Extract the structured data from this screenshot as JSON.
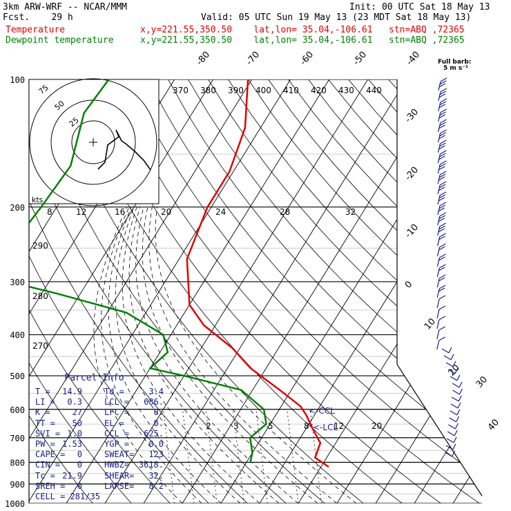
{
  "header": {
    "model": "3km ARW-WRF -- NCAR/MMM",
    "fcst": "Fcst.    29 h",
    "init": "Init: 00 UTC Sat 18 May 13",
    "valid": "Valid: 05 UTC Sun 19 May 13 (23 MDT Sat 18 May 13)",
    "temp_label": "Temperature",
    "temp_info": "x,y=221.55,350.50    lat,lon= 35.04,-106.61   stn=ABQ ,72365",
    "dew_label": "Dewpoint temperature",
    "dew_info": "x,y=221.55,350.50    lat,lon= 35.04,-106.61   stn=ABQ ,72365"
  },
  "colors": {
    "temperature": "#e00000",
    "dewpoint": "#008000",
    "wind": "#1a1a8c",
    "text": "#000000"
  },
  "barb_legend": {
    "line1": "Full barb:",
    "line2": "5 m s⁻¹"
  },
  "parcel_info": {
    "title": "Parcel Info",
    "rows": [
      [
        "T  =",
        "14.9",
        "Td =",
        "3.4"
      ],
      [
        "LI =",
        "0.3",
        "LCL =",
        "686."
      ],
      [
        "K  =",
        "27",
        "LFC =",
        "0."
      ],
      [
        "TT =",
        "50",
        "EL  =",
        "0."
      ],
      [
        "SVI =",
        "1.0",
        "CCL =",
        "625."
      ],
      [
        "PW =",
        "1.53",
        "YGP =",
        "0.0"
      ],
      [
        "CAPE =",
        "0",
        "SWEAT=",
        "123"
      ],
      [
        "CIN =",
        "0",
        "HWBZ=",
        "3618."
      ],
      [
        "Tc =",
        "21.9",
        "SHEAR=",
        "32."
      ],
      [
        "SREH =",
        "0",
        "LAPSE=",
        "8.2"
      ],
      [
        "CELL = 281/35",
        "",
        "",
        ""
      ]
    ]
  },
  "hodograph": {
    "units": "kts",
    "ring_labels": [
      "25",
      "50",
      "75"
    ]
  },
  "chart_data": {
    "type": "line",
    "title": "",
    "pressure_levels": [
      100,
      200,
      300,
      400,
      500,
      600,
      700,
      800,
      900,
      1000
    ],
    "pressure_labels": [
      "100",
      "200",
      "300",
      "400",
      "500",
      "600",
      "700",
      "800",
      "900",
      "1000"
    ],
    "isotherm_labels_top": [
      "-80",
      "-70",
      "-60",
      "-50",
      "-40"
    ],
    "isotherm_labels_right": [
      "-30",
      "-20",
      "-10",
      "0",
      "10",
      "20",
      "30",
      "40"
    ],
    "theta_labels": [
      "370",
      "380",
      "390",
      "400",
      "410",
      "420",
      "430",
      "440"
    ],
    "mixing_ratio_labels": [
      "8",
      "12",
      "16",
      "20",
      "24",
      "28",
      "32"
    ],
    "mixing_ratio_labels_low": [
      "2",
      "3",
      "5",
      "8",
      "12",
      "20"
    ],
    "theta_labels_left": [
      "290",
      "280",
      "270"
    ],
    "annotations": [
      "<-CCL",
      "<-LCL"
    ],
    "series": [
      {
        "name": "Temperature",
        "points": [
          [
            100,
            -61
          ],
          [
            130,
            -54
          ],
          [
            165,
            -51
          ],
          [
            200,
            -51
          ],
          [
            265,
            -48
          ],
          [
            340,
            -40
          ],
          [
            380,
            -33
          ],
          [
            430,
            -22
          ],
          [
            480,
            -14
          ],
          [
            540,
            -3
          ],
          [
            590,
            5
          ],
          [
            620,
            8
          ],
          [
            670,
            12
          ],
          [
            720,
            16
          ],
          [
            780,
            17
          ],
          [
            820,
            22
          ]
        ]
      },
      {
        "name": "Dewpoint temperature",
        "points": [
          [
            100,
            -97
          ],
          [
            120,
            -98
          ],
          [
            160,
            -93
          ],
          [
            200,
            -94
          ],
          [
            230,
            -95
          ],
          [
            265,
            -97
          ],
          [
            290,
            -98
          ],
          [
            320,
            -76
          ],
          [
            355,
            -55
          ],
          [
            400,
            -42
          ],
          [
            440,
            -38
          ],
          [
            480,
            -40
          ],
          [
            500,
            -30
          ],
          [
            540,
            -13
          ],
          [
            600,
            -4
          ],
          [
            650,
            -1
          ],
          [
            700,
            -3
          ],
          [
            760,
            0
          ],
          [
            800,
            1
          ]
        ]
      }
    ]
  }
}
